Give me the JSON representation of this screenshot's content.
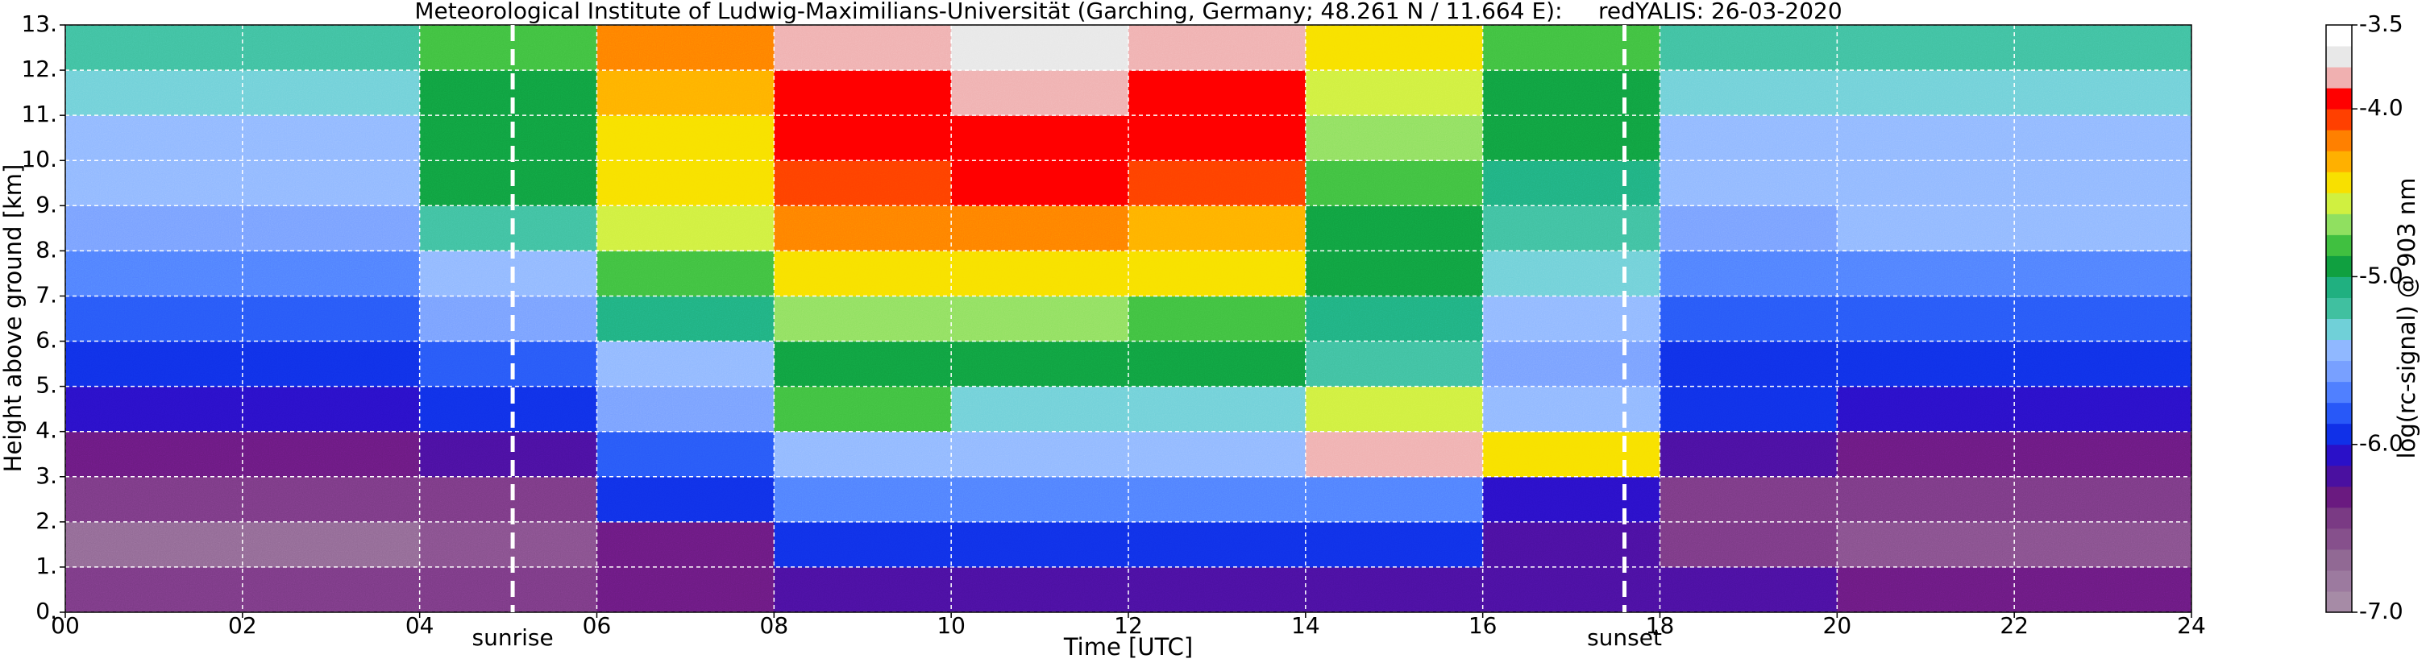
{
  "chart_data": {
    "type": "heatmap",
    "title": "Meteorological Institute of Ludwig-Maximilians-Universität (Garching, Germany; 48.261 N / 11.664 E):     redYALIS: 26-03-2020",
    "x_label": "Time [UTC]",
    "y_label": "Height above ground [km]",
    "colorbar_label": "log(rc-signal) @ 903 nm",
    "xlim": [
      0,
      24
    ],
    "ylim": [
      0,
      13
    ],
    "xticks": [
      {
        "value": 0,
        "label": "00"
      },
      {
        "value": 2,
        "label": "02"
      },
      {
        "value": 4,
        "label": "04"
      },
      {
        "value": 6,
        "label": "06"
      },
      {
        "value": 8,
        "label": "08"
      },
      {
        "value": 10,
        "label": "10"
      },
      {
        "value": 12,
        "label": "12"
      },
      {
        "value": 14,
        "label": "14"
      },
      {
        "value": 16,
        "label": "16"
      },
      {
        "value": 18,
        "label": "18"
      },
      {
        "value": 20,
        "label": "20"
      },
      {
        "value": 22,
        "label": "22"
      },
      {
        "value": 24,
        "label": "24"
      }
    ],
    "yticks": [
      {
        "value": 0,
        "label": "0."
      },
      {
        "value": 1,
        "label": "1."
      },
      {
        "value": 2,
        "label": "2."
      },
      {
        "value": 3,
        "label": "3."
      },
      {
        "value": 4,
        "label": "4."
      },
      {
        "value": 5,
        "label": "5."
      },
      {
        "value": 6,
        "label": "6."
      },
      {
        "value": 7,
        "label": "7."
      },
      {
        "value": 8,
        "label": "8."
      },
      {
        "value": 9,
        "label": "9."
      },
      {
        "value": 10,
        "label": "10."
      },
      {
        "value": 11,
        "label": "11."
      },
      {
        "value": 12,
        "label": "12."
      },
      {
        "value": 13,
        "label": "13."
      }
    ],
    "grid": true,
    "x_bins": [
      0,
      2,
      4,
      6,
      8,
      10,
      12,
      14,
      16,
      18,
      20,
      22,
      24
    ],
    "y_bins": [
      0,
      1,
      2,
      3,
      4,
      5,
      6,
      7,
      8,
      9,
      10,
      11,
      12,
      13
    ],
    "z": [
      [
        -6.4,
        -6.4,
        -6.4,
        -6.3,
        -6.2,
        -6.2,
        -6.2,
        -6.2,
        -6.2,
        -6.2,
        -6.3,
        -6.3
      ],
      [
        -6.7,
        -6.7,
        -6.6,
        -6.3,
        -6.0,
        -6.0,
        -6.0,
        -6.0,
        -6.2,
        -6.5,
        -6.6,
        -6.6
      ],
      [
        -6.5,
        -6.5,
        -6.4,
        -6.0,
        -5.7,
        -5.7,
        -5.7,
        -5.7,
        -6.1,
        -6.4,
        -6.5,
        -6.5
      ],
      [
        -6.3,
        -6.3,
        -6.2,
        -5.8,
        -5.5,
        -5.5,
        -5.5,
        -3.8,
        -4.5,
        -6.2,
        -6.3,
        -6.3
      ],
      [
        -6.1,
        -6.1,
        -6.0,
        -5.6,
        -4.8,
        -5.3,
        -5.3,
        -4.6,
        -5.4,
        -6.0,
        -6.1,
        -6.1
      ],
      [
        -5.9,
        -5.9,
        -5.8,
        -5.4,
        -4.9,
        -5.0,
        -5.0,
        -5.2,
        -5.6,
        -5.9,
        -5.9,
        -5.9
      ],
      [
        -5.8,
        -5.8,
        -5.6,
        -5.1,
        -4.7,
        -4.7,
        -4.8,
        -5.1,
        -5.5,
        -5.8,
        -5.8,
        -5.8
      ],
      [
        -5.7,
        -5.7,
        -5.4,
        -4.8,
        -4.4,
        -4.4,
        -4.4,
        -5.0,
        -5.3,
        -5.7,
        -5.7,
        -5.7
      ],
      [
        -5.6,
        -5.6,
        -5.2,
        -4.6,
        -4.2,
        -4.2,
        -4.3,
        -4.9,
        -5.2,
        -5.6,
        -5.4,
        -5.5
      ],
      [
        -5.5,
        -5.5,
        -5.0,
        -4.5,
        -4.1,
        -4.0,
        -4.1,
        -4.8,
        -5.1,
        -5.5,
        -5.5,
        -5.5
      ],
      [
        -5.4,
        -5.4,
        -5.0,
        -4.4,
        -4.0,
        -3.9,
        -4.0,
        -4.7,
        -5.0,
        -5.4,
        -5.4,
        -5.4
      ],
      [
        -5.3,
        -5.3,
        -4.9,
        -4.3,
        -3.9,
        -3.8,
        -3.9,
        -4.6,
        -4.9,
        -5.3,
        -5.3,
        -5.3
      ],
      [
        -5.2,
        -5.2,
        -4.8,
        -4.2,
        -3.8,
        -3.7,
        -3.8,
        -4.5,
        -4.8,
        -5.2,
        -5.2,
        -5.2
      ]
    ],
    "clim": [
      -7,
      -3.5
    ],
    "colorbar_ticks": [
      {
        "value": -7,
        "label": "-7.0"
      },
      {
        "value": -6,
        "label": "-6.0"
      },
      {
        "value": -5,
        "label": "-5.0"
      },
      {
        "value": -4,
        "label": "-4.0"
      },
      -3.5
    ],
    "colors": [
      "#a68ba6",
      "#9c7a9f",
      "#916994",
      "#86508c",
      "#7a3a84",
      "#6a1a80",
      "#4a10a0",
      "#2a10c8",
      "#1030e8",
      "#2858f8",
      "#5080ff",
      "#78a0ff",
      "#90b8ff",
      "#70d0d8",
      "#40c0a0",
      "#20b080",
      "#10a040",
      "#40c040",
      "#90e060",
      "#d0f040",
      "#f8e000",
      "#ffb000",
      "#ff8000",
      "#ff4000",
      "#ff0000",
      "#f0b0b0",
      "#e8e8e8",
      "#ffffff"
    ],
    "markers": [
      {
        "label": "sunrise",
        "x": 5.05
      },
      {
        "label": "sunset",
        "x": 17.6
      }
    ]
  }
}
